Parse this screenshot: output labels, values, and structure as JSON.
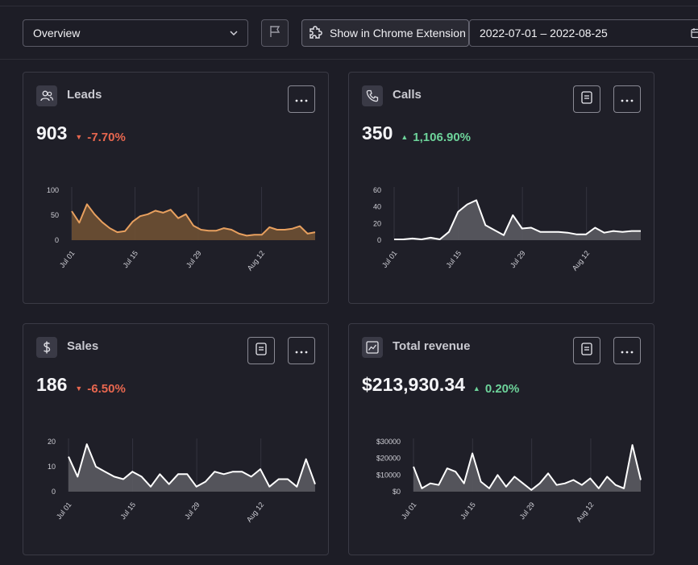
{
  "toolbar": {
    "view_select": "Overview",
    "extension_button": "Show in Chrome Extension",
    "date_range": "2022-07-01 – 2022-08-25"
  },
  "cards": [
    {
      "id": "leads",
      "title": "Leads",
      "value": "903",
      "change": "-7.70%",
      "direction": "down",
      "icon": "users-icon",
      "has_report": false,
      "chart_data": {
        "type": "area",
        "color": "#e8a05f",
        "yticks": [
          "100",
          "50",
          "0"
        ],
        "ylim": [
          0,
          100
        ],
        "xticks": [
          "Jul 01",
          "Jul 15",
          "Jul 29",
          "Aug 12"
        ],
        "values": [
          58,
          35,
          72,
          52,
          36,
          24,
          16,
          18,
          37,
          48,
          52,
          59,
          55,
          61,
          44,
          52,
          29,
          21,
          19,
          19,
          24,
          21,
          13,
          9,
          11,
          11,
          26,
          21,
          21,
          23,
          28,
          13,
          16
        ]
      }
    },
    {
      "id": "calls",
      "title": "Calls",
      "value": "350",
      "change": "1,106.90%",
      "direction": "up",
      "icon": "phone-icon",
      "has_report": true,
      "chart_data": {
        "type": "area",
        "color": "#ffffff",
        "yticks": [
          "60",
          "40",
          "20",
          "0"
        ],
        "ylim": [
          0,
          60
        ],
        "xticks": [
          "Jul 01",
          "Jul 15",
          "Jul 29",
          "Aug 12"
        ],
        "values": [
          1,
          1,
          2,
          1,
          3,
          1,
          10,
          34,
          43,
          48,
          18,
          12,
          6,
          30,
          14,
          15,
          10,
          10,
          10,
          9,
          7,
          7,
          15,
          9,
          11,
          10,
          11,
          11
        ]
      }
    },
    {
      "id": "sales",
      "title": "Sales",
      "value": "186",
      "change": "-6.50%",
      "direction": "down",
      "icon": "dollar-icon",
      "has_report": true,
      "chart_data": {
        "type": "area",
        "color": "#ffffff",
        "yticks": [
          "20",
          "10",
          "0"
        ],
        "ylim": [
          0,
          20
        ],
        "xticks": [
          "Jul 01",
          "Jul 15",
          "Jul 29",
          "Aug 12"
        ],
        "values": [
          14,
          6,
          19,
          10,
          8,
          6,
          5,
          8,
          6,
          2,
          7,
          3,
          7,
          7,
          2,
          4,
          8,
          7,
          8,
          8,
          6,
          9,
          2,
          5,
          5,
          2,
          13,
          3
        ]
      }
    },
    {
      "id": "revenue",
      "title": "Total revenue",
      "value": "$213,930.34",
      "change": "0.20%",
      "direction": "up",
      "icon": "trend-chart-icon",
      "has_report": true,
      "chart_data": {
        "type": "area",
        "color": "#ffffff",
        "yticks": [
          "$30000",
          "$20000",
          "$10000",
          "$0"
        ],
        "ylim": [
          0,
          30000
        ],
        "xticks": [
          "Jul 01",
          "Jul 15",
          "Jul 29",
          "Aug 12"
        ],
        "values": [
          15000,
          2000,
          5000,
          4000,
          14000,
          12000,
          5000,
          23000,
          6000,
          2000,
          10000,
          3000,
          9000,
          5000,
          1000,
          5000,
          11000,
          4000,
          5000,
          7000,
          4000,
          8000,
          2000,
          9000,
          4000,
          2000,
          28000,
          7000
        ]
      }
    }
  ]
}
